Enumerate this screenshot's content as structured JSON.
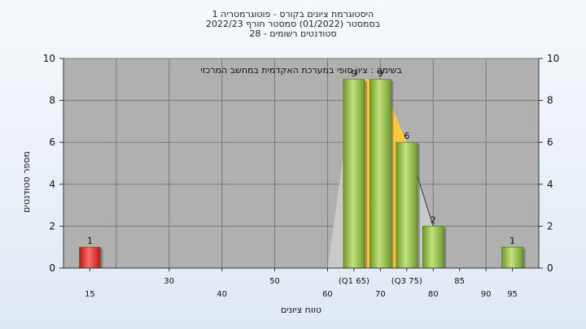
{
  "title_lines": [
    "היסטוגרמת ציונים בקורס - פוטוגרמטריה 1",
    "בסמסטר  (01/2022)  סמסטר חורף 2022/23",
    "סטודנטים רשומים - 28"
  ],
  "chart_data": {
    "type": "bar",
    "annotation": "בשימה : ציון סופי במערכת האקדמית במחשב המרכזי",
    "xlabel": "טווח ציונים",
    "ylabel": "מספר סטודנטים",
    "ylim": [
      0,
      10
    ],
    "yticks": [
      0,
      2,
      4,
      6,
      8,
      10
    ],
    "xlim": [
      10,
      100
    ],
    "x_tick_labels_lower": [
      {
        "x": 15,
        "label": "15"
      },
      {
        "x": 40,
        "label": "40"
      },
      {
        "x": 60,
        "label": "60"
      },
      {
        "x": 70,
        "label": "70"
      },
      {
        "x": 80,
        "label": "80"
      },
      {
        "x": 90,
        "label": "90"
      },
      {
        "x": 95,
        "label": "95"
      }
    ],
    "x_tick_labels_upper": [
      {
        "x": 30,
        "label": "30"
      },
      {
        "x": 50,
        "label": "50"
      },
      {
        "x": 65,
        "label": "(Q1 65)"
      },
      {
        "x": 75,
        "label": "(Q3 75)"
      },
      {
        "x": 85,
        "label": "85"
      }
    ],
    "bars": [
      {
        "x": 15,
        "value": 1,
        "label": "1",
        "color": "#dd2a2a"
      },
      {
        "x": 65,
        "value": 9,
        "label": "9",
        "color": "#8bc34a"
      },
      {
        "x": 70,
        "value": 9,
        "label": "9",
        "color": "#8bc34a"
      },
      {
        "x": 75,
        "value": 6,
        "label": "6",
        "color": "#8bc34a"
      },
      {
        "x": 80,
        "value": 2,
        "label": "2",
        "color": "#8bc34a"
      },
      {
        "x": 95,
        "value": 1,
        "label": "1",
        "color": "#8bc34a"
      }
    ],
    "grey_area": [
      [
        60,
        0
      ],
      [
        65,
        9
      ],
      [
        75,
        6
      ],
      [
        80,
        2
      ],
      [
        80,
        0
      ]
    ],
    "orange_area": [
      [
        65,
        9
      ],
      [
        70,
        9
      ],
      [
        75,
        6
      ],
      [
        75,
        0
      ],
      [
        65,
        0
      ]
    ],
    "grid": true,
    "colors": {
      "plot_bg": "#b0b0b0",
      "grey_area": "#c9c9c9",
      "orange_area": "#ffc640"
    }
  }
}
